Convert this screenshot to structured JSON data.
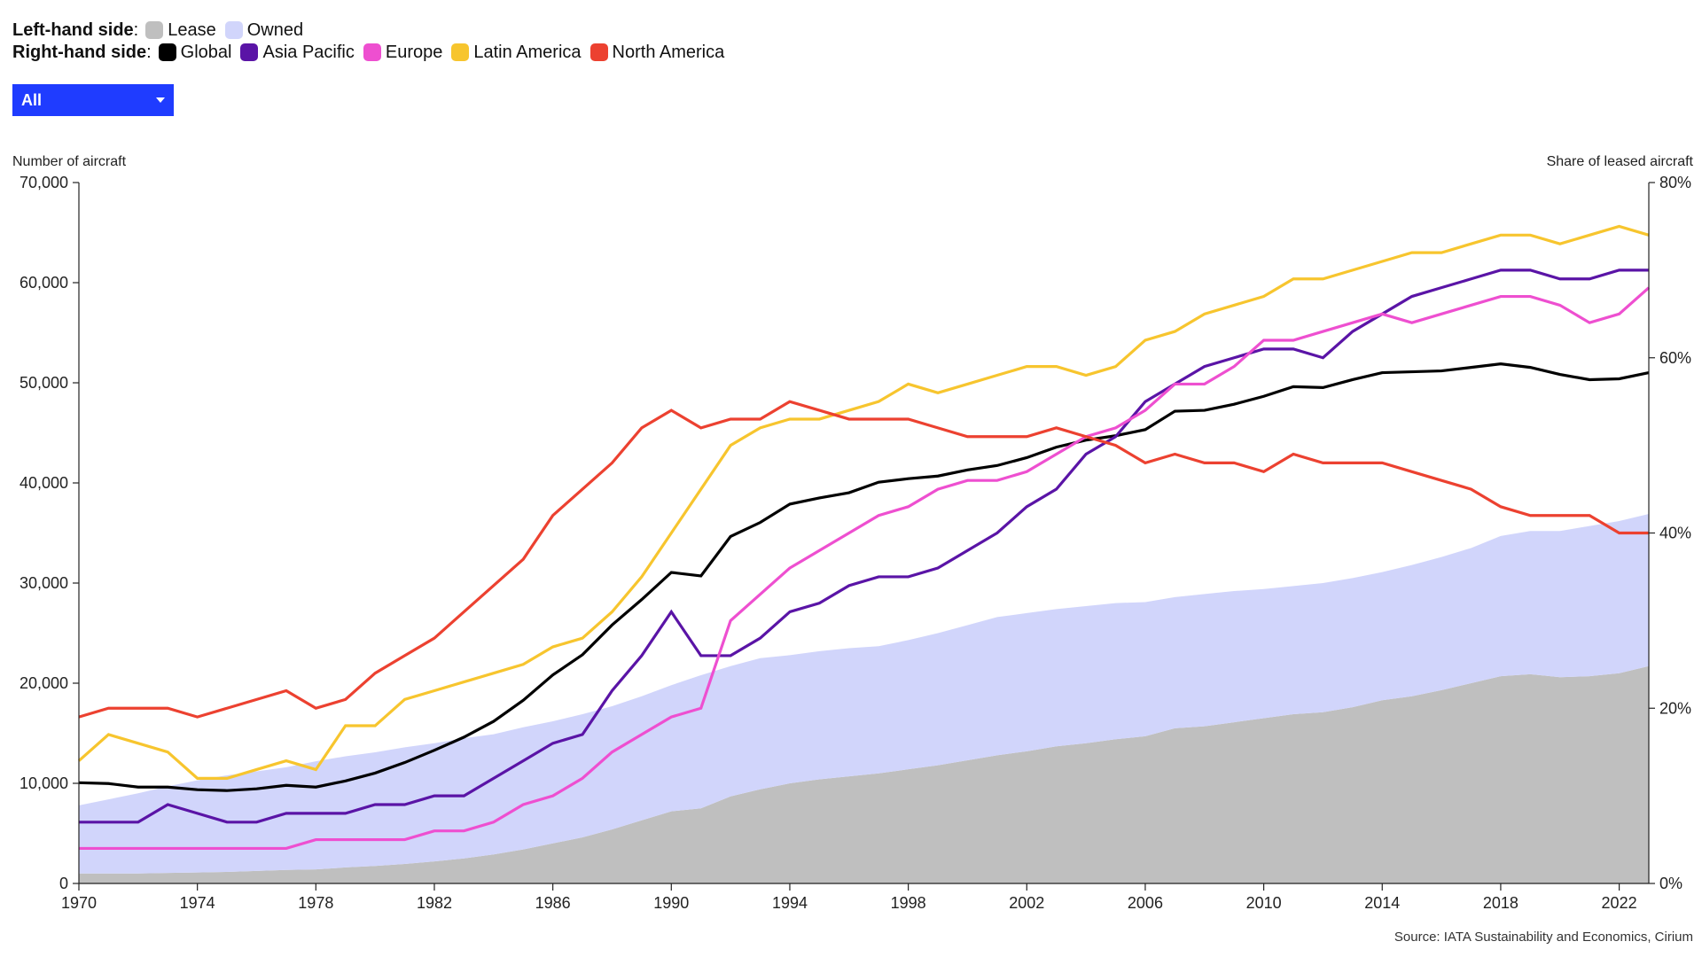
{
  "legend": {
    "left_label": "Left-hand side",
    "left_colon": ":",
    "left_items": [
      {
        "name": "Lease",
        "color": "#bfbfbf"
      },
      {
        "name": "Owned",
        "color": "#d1d5fb"
      }
    ],
    "right_label": "Right-hand side",
    "right_colon": ":",
    "right_items": [
      {
        "name": "Global",
        "color": "#000000"
      },
      {
        "name": "Asia Pacific",
        "color": "#5a14a6"
      },
      {
        "name": "Europe",
        "color": "#ee4fd0"
      },
      {
        "name": "Latin America",
        "color": "#f7c52e"
      },
      {
        "name": "North America",
        "color": "#ec4130"
      }
    ]
  },
  "dropdown": {
    "selected": "All"
  },
  "source": "Source: IATA Sustainability and Economics, Cirium",
  "chart_data": {
    "type": "area+line",
    "ylabel_left": "Number of aircraft",
    "ylabel_right": "Share of leased aircraft",
    "ylim_left": [
      0,
      70000
    ],
    "ylim_right": [
      0,
      80
    ],
    "xlim": [
      1970,
      2023
    ],
    "x_ticks": [
      1970,
      1974,
      1978,
      1982,
      1986,
      1990,
      1994,
      1998,
      2002,
      2006,
      2010,
      2014,
      2018,
      2022
    ],
    "y_left_ticks": [
      "0",
      "10,000",
      "20,000",
      "30,000",
      "40,000",
      "50,000",
      "60,000",
      "70,000"
    ],
    "y_left_tick_values": [
      0,
      10000,
      20000,
      30000,
      40000,
      50000,
      60000,
      70000
    ],
    "y_right_ticks": [
      "0%",
      "20%",
      "40%",
      "60%",
      "80%"
    ],
    "y_right_tick_values": [
      0,
      20,
      40,
      60,
      80
    ],
    "years": [
      1970,
      1971,
      1972,
      1973,
      1974,
      1975,
      1976,
      1977,
      1978,
      1979,
      1980,
      1981,
      1982,
      1983,
      1984,
      1985,
      1986,
      1987,
      1988,
      1989,
      1990,
      1991,
      1992,
      1993,
      1994,
      1995,
      1996,
      1997,
      1998,
      1999,
      2000,
      2001,
      2002,
      2003,
      2004,
      2005,
      2006,
      2007,
      2008,
      2009,
      2010,
      2011,
      2012,
      2013,
      2014,
      2015,
      2016,
      2017,
      2018,
      2019,
      2020,
      2021,
      2022,
      2023
    ],
    "area_series": [
      {
        "name": "Lease",
        "axis": "left",
        "values": [
          1000,
          1000,
          1000,
          1050,
          1100,
          1150,
          1250,
          1350,
          1400,
          1600,
          1750,
          1950,
          2200,
          2500,
          2900,
          3400,
          4000,
          4600,
          5400,
          6300,
          7200,
          7500,
          8700,
          9400,
          10000,
          10400,
          10700,
          11000,
          11400,
          11800,
          12300,
          12800,
          13200,
          13700,
          14000,
          14400,
          14700,
          15500,
          15700,
          16100,
          16500,
          16900,
          17100,
          17600,
          18300,
          18700,
          19300,
          20000,
          20700,
          20900,
          20600,
          20700,
          21000,
          21700
        ]
      },
      {
        "name": "Owned",
        "axis": "left",
        "values": [
          6800,
          7400,
          8000,
          8650,
          9200,
          9650,
          9950,
          10250,
          10800,
          11100,
          11350,
          11650,
          11800,
          12000,
          12000,
          12200,
          12200,
          12300,
          12300,
          12400,
          12600,
          13300,
          13000,
          13100,
          12800,
          12800,
          12800,
          12700,
          12900,
          13200,
          13500,
          13800,
          13800,
          13700,
          13700,
          13600,
          13400,
          13100,
          13200,
          13100,
          12900,
          12800,
          12900,
          12900,
          12800,
          13100,
          13300,
          13500,
          14000,
          14300,
          14600,
          15000,
          15200,
          15200
        ]
      }
    ],
    "line_series": [
      {
        "name": "Global",
        "axis": "right",
        "values": [
          11.5,
          11.4,
          11.0,
          11.0,
          10.7,
          10.6,
          10.8,
          11.2,
          11.0,
          11.7,
          12.6,
          13.8,
          15.2,
          16.7,
          18.5,
          20.9,
          23.8,
          26.1,
          29.5,
          32.4,
          35.5,
          35.1,
          39.6,
          41.2,
          43.3,
          44.0,
          44.6,
          45.8,
          46.2,
          46.5,
          47.2,
          47.7,
          48.6,
          49.8,
          50.6,
          51.1,
          51.8,
          53.9,
          54.0,
          54.7,
          55.6,
          56.7,
          56.6,
          57.5,
          58.3,
          58.4,
          58.5,
          58.9,
          59.3,
          58.9,
          58.1,
          57.5,
          57.6,
          58.3
        ]
      },
      {
        "name": "Asia Pacific",
        "axis": "right",
        "values": [
          7,
          7,
          7,
          9,
          8,
          7,
          7,
          8,
          8,
          8,
          9,
          9,
          10,
          10,
          12,
          14,
          16,
          17,
          22,
          26,
          31,
          26,
          26,
          28,
          31,
          32,
          34,
          35,
          35,
          36,
          38,
          40,
          43,
          45,
          49,
          51,
          55,
          57,
          59,
          60,
          61,
          61,
          60,
          63,
          65,
          67,
          68,
          69,
          70,
          70,
          69,
          69,
          70,
          70
        ]
      },
      {
        "name": "Europe",
        "axis": "right",
        "values": [
          4,
          4,
          4,
          4,
          4,
          4,
          4,
          4,
          5,
          5,
          5,
          5,
          6,
          6,
          7,
          9,
          10,
          12,
          15,
          17,
          19,
          20,
          30,
          33,
          36,
          38,
          40,
          42,
          43,
          45,
          46,
          46,
          47,
          49,
          51,
          52,
          54,
          57,
          57,
          59,
          62,
          62,
          63,
          64,
          65,
          64,
          65,
          66,
          67,
          67,
          66,
          64,
          65,
          68
        ]
      },
      {
        "name": "Latin America",
        "axis": "right",
        "values": [
          14,
          17,
          16,
          15,
          12,
          12,
          13,
          14,
          13,
          18,
          18,
          21,
          22,
          23,
          24,
          25,
          27,
          28,
          31,
          35,
          40,
          45,
          50,
          52,
          53,
          53,
          54,
          55,
          57,
          56,
          57,
          58,
          59,
          59,
          58,
          59,
          62,
          63,
          65,
          66,
          67,
          69,
          69,
          70,
          71,
          72,
          72,
          73,
          74,
          74,
          73,
          74,
          75,
          74
        ]
      },
      {
        "name": "North America",
        "axis": "right",
        "values": [
          19,
          20,
          20,
          20,
          19,
          20,
          21,
          22,
          20,
          21,
          24,
          26,
          28,
          31,
          34,
          37,
          42,
          45,
          48,
          52,
          54,
          52,
          53,
          53,
          55,
          54,
          53,
          53,
          53,
          52,
          51,
          51,
          51,
          52,
          51,
          50,
          48,
          49,
          48,
          48,
          47,
          49,
          48,
          48,
          48,
          47,
          46,
          45,
          43,
          42,
          42,
          42,
          40,
          40
        ]
      }
    ],
    "colors": {
      "Lease": "#bfbfbf",
      "Owned": "#d1d5fb",
      "Global": "#000000",
      "Asia Pacific": "#5a14a6",
      "Europe": "#ee4fd0",
      "Latin America": "#f7c52e",
      "North America": "#ec4130"
    }
  }
}
